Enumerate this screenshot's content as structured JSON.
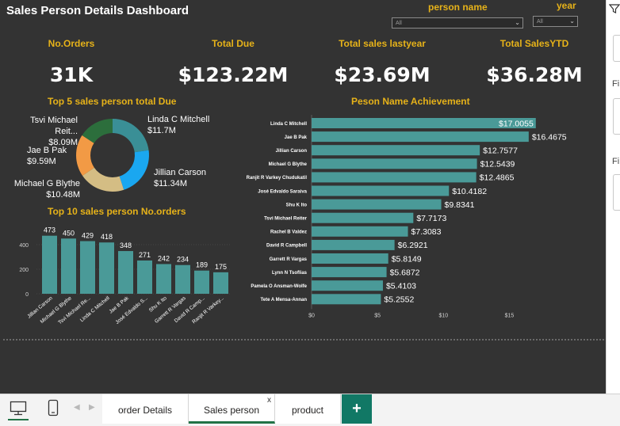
{
  "dashboard": {
    "title": "Sales Person Details Dashboard",
    "slicers": [
      {
        "label": "person name",
        "value": "All"
      },
      {
        "label": "year",
        "value": "All"
      }
    ],
    "kpis": [
      {
        "label": "No.Orders",
        "value": "31K"
      },
      {
        "label": "Total Due",
        "value": "$123.22M"
      },
      {
        "label": "Total sales lastyear",
        "value": "$23.69M"
      },
      {
        "label": "Total SalesYTD",
        "value": "$36.28M"
      }
    ]
  },
  "donut": {
    "title": "Top 5 sales person total Due",
    "labels": [
      {
        "name": "Tsvi Michael Reit...",
        "value": "$8.09M"
      },
      {
        "name": "Linda C Mitchell",
        "value": "$11.7M"
      },
      {
        "name": "Jae B Pak",
        "value": "$9.59M"
      },
      {
        "name": "Jillian Carson",
        "value": "$11.34M"
      },
      {
        "name": "Michael G Blythe",
        "value": "$10.48M"
      }
    ]
  },
  "orders_chart_title": "Top 10 sales person No.orders",
  "achievement_chart_title": "Peson Name Achievement",
  "chart_data": [
    {
      "type": "pie",
      "title": "Top 5 sales person total Due",
      "categories": [
        "Linda C Mitchell",
        "Jillian Carson",
        "Michael G Blythe",
        "Jae B Pak",
        "Tsvi Michael Reiter"
      ],
      "values": [
        11.7,
        11.34,
        10.48,
        9.59,
        8.09
      ],
      "unit": "$M",
      "colors": [
        "#3a8f96",
        "#1aa7f0",
        "#d4bd84",
        "#f29a45",
        "#2c6e3c"
      ]
    },
    {
      "type": "bar",
      "title": "Top 10 sales person No.orders",
      "categories": [
        "Jillian Carson",
        "Michael G Blythe",
        "Tsvi Michael Re...",
        "Linda C Mitchell",
        "Jae B Pak",
        "José Edvaldo S...",
        "Shu K Ito",
        "Garrett R Vargas",
        "David R Camp...",
        "Ranjit R Varkey..."
      ],
      "values": [
        473,
        450,
        429,
        418,
        348,
        271,
        242,
        234,
        189,
        175
      ],
      "y_ticks": [
        0,
        200,
        400
      ],
      "ylim": [
        0,
        520
      ],
      "color": "#4a9a98"
    },
    {
      "type": "bar",
      "orientation": "horizontal",
      "title": "Peson Name Achievement",
      "categories": [
        "Linda C Mitchell",
        "Jae B Pak",
        "Jillian Carson",
        "Michael G Blythe",
        "Ranjit R Varkey Chudukatil",
        "José Edvaldo Saraiva",
        "Shu K Ito",
        "Tsvi Michael Reiter",
        "Rachel B Valdez",
        "David R Campbell",
        "Garrett R Vargas",
        "Lynn N Tsoflias",
        "Pamela O Ansman-Wolfe",
        "Tete A Mensa-Annan"
      ],
      "values": [
        17.0055,
        16.4675,
        12.7577,
        12.5439,
        12.4865,
        10.4182,
        9.8341,
        7.7173,
        7.3083,
        6.2921,
        5.8149,
        5.6872,
        5.4103,
        5.2552
      ],
      "value_labels": [
        "$17.0055",
        "$16.4675",
        "$12.7577",
        "$12.5439",
        "$12.4865",
        "$10.4182",
        "$9.8341",
        "$7.7173",
        "$7.3083",
        "$6.2921",
        "$5.8149",
        "$5.6872",
        "$5.4103",
        "$5.2552"
      ],
      "x_ticks": [
        "$0",
        "$5",
        "$10",
        "$15"
      ],
      "x_tick_values": [
        0,
        5,
        10,
        15
      ],
      "xlim": [
        0,
        17.8
      ],
      "color": "#4a9a98"
    }
  ],
  "tabs": {
    "pages": [
      {
        "label": "order Details",
        "active": false
      },
      {
        "label": "Sales person",
        "active": true
      },
      {
        "label": "product",
        "active": false
      }
    ],
    "close_glyph": "x",
    "add_glyph": "+"
  },
  "right_pane": {
    "labels": [
      "Fi",
      "Fi"
    ]
  }
}
